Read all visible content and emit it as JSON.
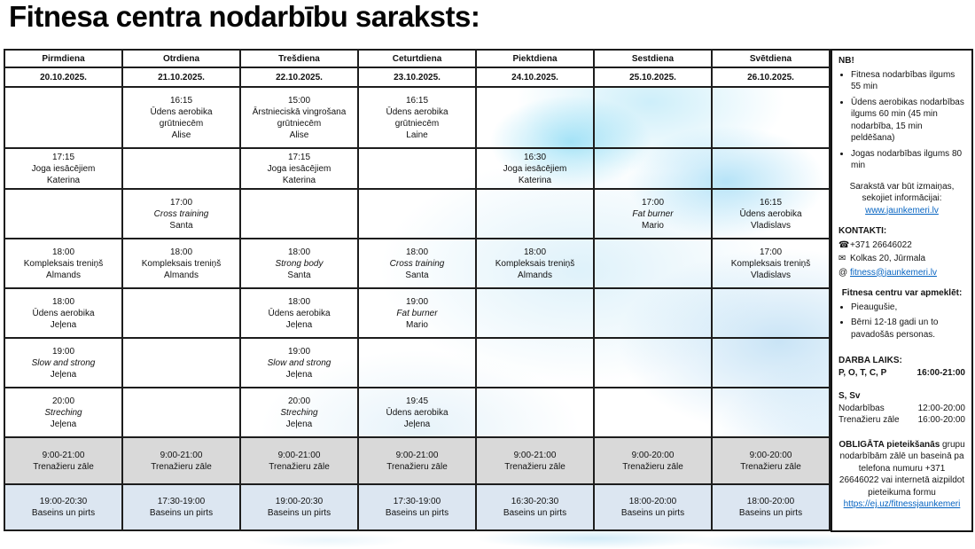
{
  "title": "Fitnesa centra nodarbību saraksts:",
  "colors": {
    "gym_row_bg": "#d9d9d9",
    "pool_row_bg": "#dce6f1",
    "link": "#0563c1"
  },
  "table": {
    "days": [
      {
        "name": "Pirmdiena",
        "date": "20.10.2025."
      },
      {
        "name": "Otrdiena",
        "date": "21.10.2025."
      },
      {
        "name": "Trešdiena",
        "date": "22.10.2025."
      },
      {
        "name": "Ceturtdiena",
        "date": "23.10.2025."
      },
      {
        "name": "Piektdiena",
        "date": "24.10.2025."
      },
      {
        "name": "Sestdiena",
        "date": "25.10.2025."
      },
      {
        "name": "Svētdiena",
        "date": "26.10.2025."
      }
    ],
    "rows": [
      {
        "type": "class",
        "cells": [
          null,
          {
            "time": "16:15",
            "name": "Ūdens aerobika grūtniecēm",
            "instr": "Alise"
          },
          {
            "time": "15:00",
            "name": "Ārstnieciskā vingrošana grūtniecēm",
            "instr": "Alise"
          },
          {
            "time": "16:15",
            "name": "Ūdens aerobika grūtniecēm",
            "instr": "Laine"
          },
          null,
          null,
          null
        ]
      },
      {
        "type": "class",
        "cells": [
          {
            "time": "17:15",
            "name": "Joga iesācējiem",
            "instr": "Katerina"
          },
          null,
          {
            "time": "17:15",
            "name": "Joga iesācējiem",
            "instr": "Katerina"
          },
          null,
          {
            "time": "16:30",
            "name": "Joga iesācējiem",
            "instr": "Katerina"
          },
          null,
          null
        ]
      },
      {
        "type": "class",
        "cells": [
          null,
          {
            "time": "17:00",
            "name": "Cross training",
            "it": true,
            "instr": "Santa"
          },
          null,
          null,
          null,
          {
            "time": "17:00",
            "name": "Fat burner",
            "it": true,
            "instr": "Mario"
          },
          {
            "time": "16:15",
            "name": "Ūdens aerobika",
            "instr": "Vladislavs"
          }
        ]
      },
      {
        "type": "class",
        "cells": [
          {
            "time": "18:00",
            "name": "Kompleksais treniņš",
            "instr": "Almands"
          },
          {
            "time": "18:00",
            "name": "Kompleksais treniņš",
            "instr": "Almands"
          },
          {
            "time": "18:00",
            "name": "Strong body",
            "it": true,
            "instr": "Santa"
          },
          {
            "time": "18:00",
            "name": "Cross training",
            "it": true,
            "instr": "Santa"
          },
          {
            "time": "18:00",
            "name": "Kompleksais treniņš",
            "instr": "Almands"
          },
          null,
          {
            "time": "17:00",
            "name": "Kompleksais treniņš",
            "instr": "Vladislavs"
          }
        ]
      },
      {
        "type": "class",
        "cells": [
          {
            "time": "18:00",
            "name": "Ūdens aerobika",
            "instr": "Jeļena"
          },
          null,
          {
            "time": "18:00",
            "name": "Ūdens aerobika",
            "instr": "Jeļena"
          },
          {
            "time": "19:00",
            "name": "Fat burner",
            "it": true,
            "instr": "Mario"
          },
          null,
          null,
          null
        ]
      },
      {
        "type": "class",
        "cells": [
          {
            "time": "19:00",
            "name": "Slow and strong",
            "it": true,
            "instr": "Jeļena"
          },
          null,
          {
            "time": "19:00",
            "name": "Slow and strong",
            "it": true,
            "instr": "Jeļena"
          },
          null,
          null,
          null,
          null
        ]
      },
      {
        "type": "class",
        "cells": [
          {
            "time": "20:00",
            "name": "Streching",
            "it": true,
            "instr": "Jeļena"
          },
          null,
          {
            "time": "20:00",
            "name": "Streching",
            "it": true,
            "instr": "Jeļena"
          },
          {
            "time": "19:45",
            "name": "Ūdens aerobika",
            "instr": "Jeļena"
          },
          null,
          null,
          null
        ]
      },
      {
        "type": "gym",
        "cells": [
          {
            "time": "9:00-21:00",
            "name": "Trenažieru zāle"
          },
          {
            "time": "9:00-21:00",
            "name": "Trenažieru zāle"
          },
          {
            "time": "9:00-21:00",
            "name": "Trenažieru zāle"
          },
          {
            "time": "9:00-21:00",
            "name": "Trenažieru zāle"
          },
          {
            "time": "9:00-21:00",
            "name": "Trenažieru zāle"
          },
          {
            "time": "9:00-20:00",
            "name": "Trenažieru zāle"
          },
          {
            "time": "9:00-20:00",
            "name": "Trenažieru zāle"
          }
        ]
      },
      {
        "type": "pool",
        "cells": [
          {
            "time": "19:00-20:30",
            "name": "Baseins un pirts"
          },
          {
            "time": "17:30-19:00",
            "name": "Baseins un pirts"
          },
          {
            "time": "19:00-20:30",
            "name": "Baseins un pirts"
          },
          {
            "time": "17:30-19:00",
            "name": "Baseins un pirts"
          },
          {
            "time": "16:30-20:30",
            "name": "Baseins un pirts"
          },
          {
            "time": "18:00-20:00",
            "name": "Baseins un pirts"
          },
          {
            "time": "18:00-20:00",
            "name": "Baseins un pirts"
          }
        ]
      }
    ]
  },
  "sidebar": {
    "nb": {
      "heading": "NB!",
      "bullets": [
        "Fitnesa nodarbības ilgums 55 min",
        "Ūdens aerobikas nodarbības ilgums 60 min (45 min nodarbība, 15 min peldēšana)",
        "Jogas nodarbības ilgums  80 min"
      ],
      "note": "Sarakstā var būt izmaiņas, sekojiet informācijai: ",
      "note_link": "www.jaunkemeri.lv"
    },
    "kontakti": {
      "heading": "KONTAKTI:",
      "phone_icon": "☎",
      "phone": "+371 26646022",
      "address_icon": "✉",
      "address": "Kolkas 20, Jūrmala",
      "email_prefix": "@",
      "email": "fitness@jaunkemeri.lv"
    },
    "visit": {
      "heading": "Fitnesa centru var apmeklēt:",
      "bullets": [
        "Pieaugušie,",
        "Bērni 12-18 gadi un to pavadošās personas."
      ]
    },
    "hours": {
      "heading": "DARBA LAIKS:",
      "weekdays_label": "P, O, T, C, P",
      "weekdays_value": "16:00-21:00",
      "weekend_label": "S, Sv",
      "classes_label": "Nodarbības",
      "classes_value": "12:00-20:00",
      "gym_label": "Trenažieru zāle",
      "gym_value": "16:00-20:00"
    },
    "obligata": {
      "bold": "OBLIGĀTA pieteikšanās",
      "text": " grupu nodarbībām zālē un baseinā pa telefona numuru +371 26646022 vai internetā aizpildot pieteikuma formu",
      "link": "https://ej.uz/fitnessjaunkemeri"
    }
  }
}
